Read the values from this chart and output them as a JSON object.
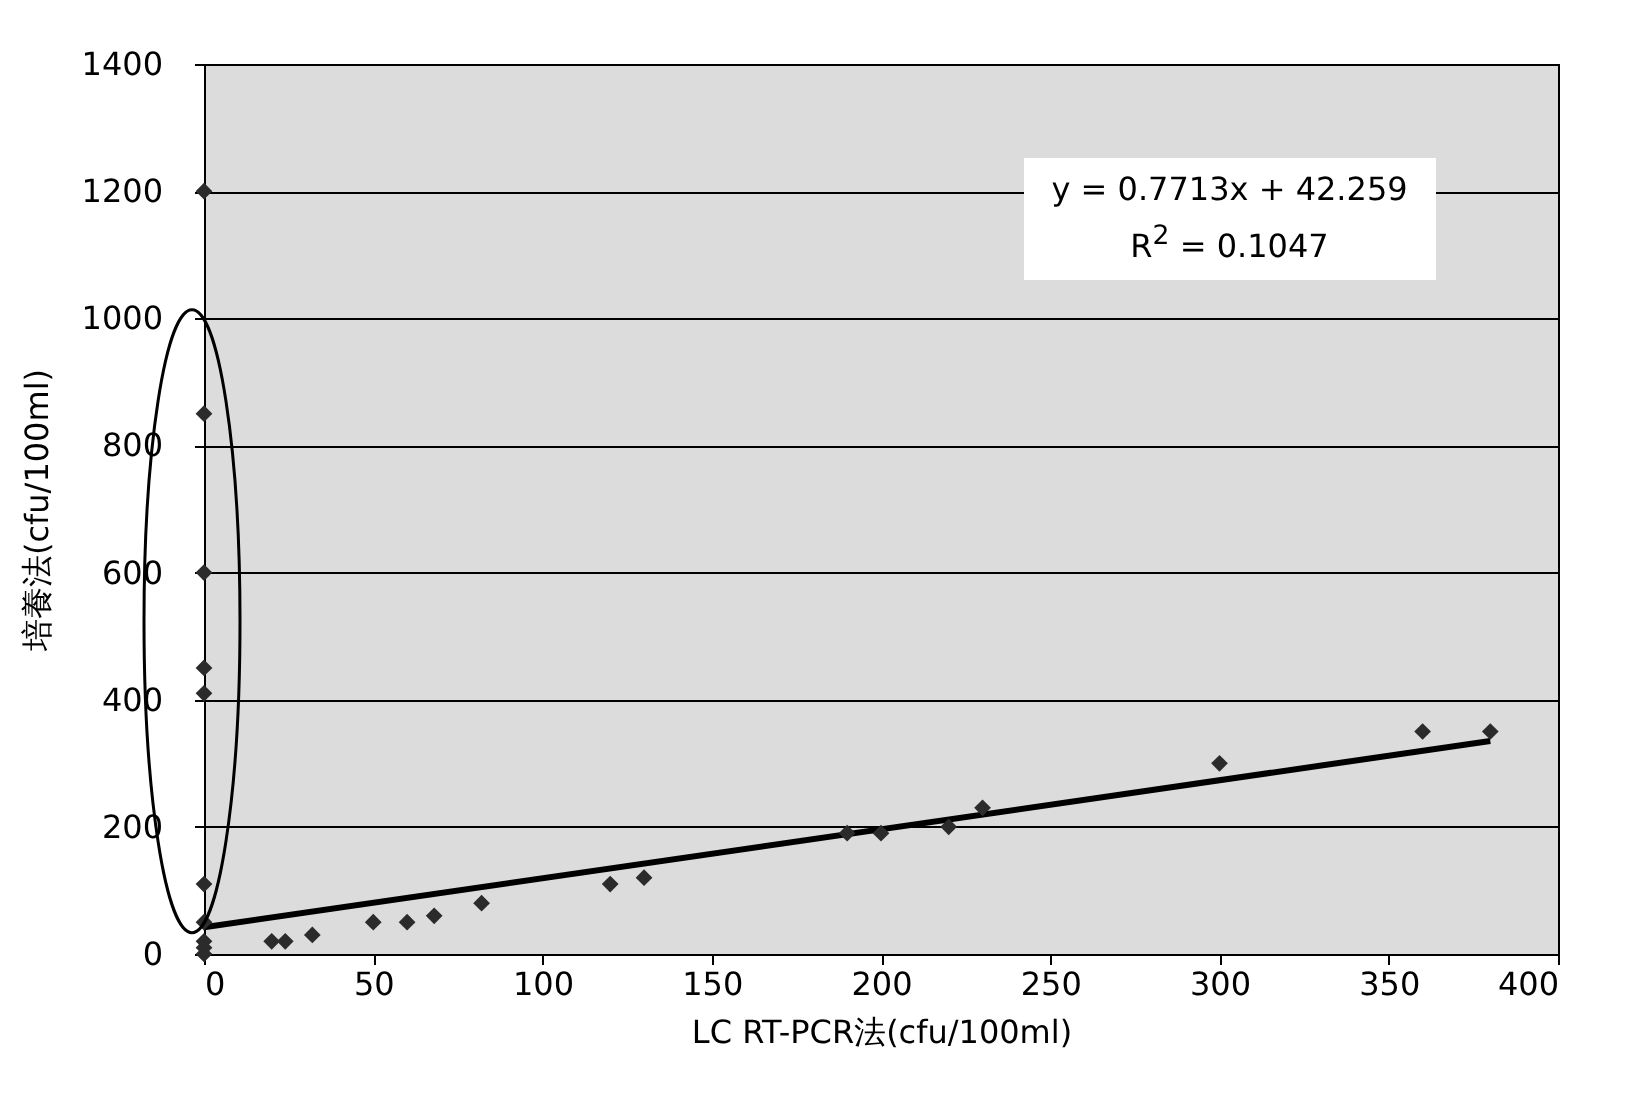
{
  "chart_data": {
    "type": "scatter",
    "xlabel": "LC RT-PCR法(cfu/100ml)",
    "ylabel": "培養法(cfu/100ml)",
    "x": [
      0,
      0,
      0,
      0,
      0,
      0,
      0,
      0,
      0,
      0,
      20,
      24,
      32,
      50,
      60,
      68,
      82,
      120,
      130,
      190,
      200,
      220,
      230,
      300,
      360,
      380
    ],
    "series": [
      {
        "color": "#2b2b2b",
        "marker": "diamond",
        "values": [
          1200,
          850,
          600,
          450,
          410,
          110,
          50,
          20,
          10,
          0,
          20,
          20,
          30,
          50,
          50,
          60,
          80,
          110,
          120,
          190,
          190,
          200,
          230,
          300,
          350,
          350
        ]
      },
      {
        "type": "line",
        "color": "#000000",
        "x": [
          0,
          380
        ],
        "values": [
          42,
          335
        ]
      }
    ],
    "annotations": [
      "y = 0.7713x + 42.259",
      "R$^{2}$ = 0.1047"
    ],
    "xlim": [
      0,
      400
    ],
    "xticks": [
      0,
      50,
      100,
      150,
      200,
      250,
      300,
      350,
      400
    ],
    "ylim": [
      0,
      1400
    ],
    "yticks": [
      0,
      200,
      400,
      600,
      800,
      1000,
      1200,
      1400
    ],
    "grid": "y"
  }
}
